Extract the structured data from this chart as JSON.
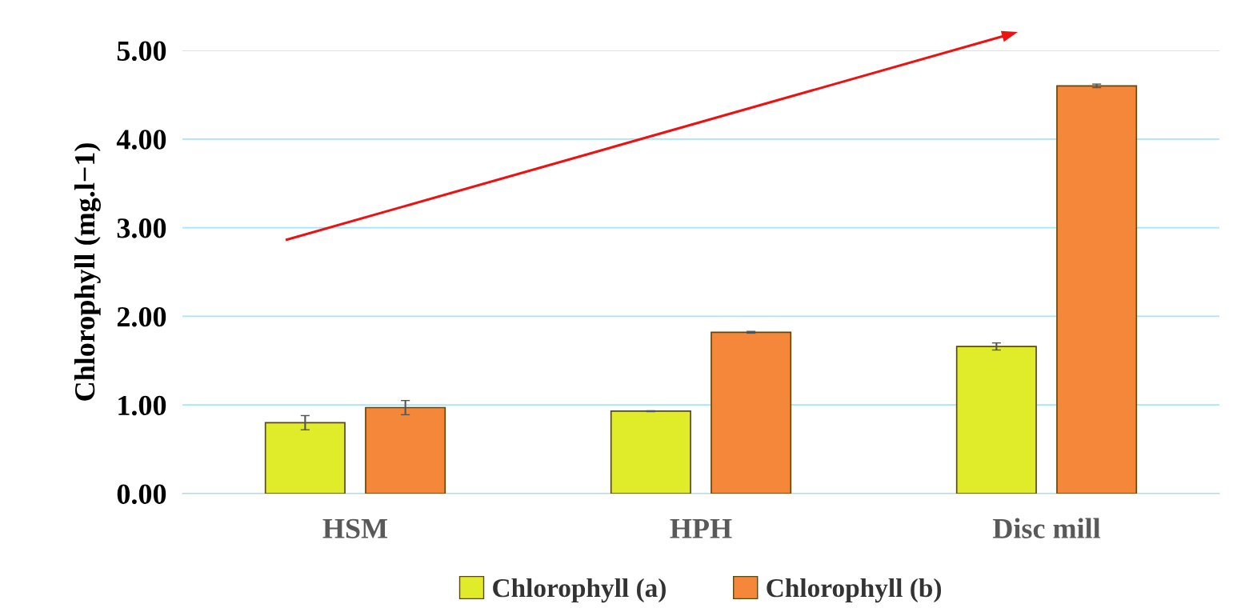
{
  "chart_data": {
    "type": "bar",
    "ylabel": "Chlorophyll (mg.l−1)",
    "categories": [
      "HSM",
      "HPH",
      "Disc mill"
    ],
    "series": [
      {
        "name": "Chlorophyll (a)",
        "color": "#e0ec2a",
        "values": [
          0.8,
          0.93,
          1.66
        ],
        "errors": [
          0.08,
          0.005,
          0.04
        ]
      },
      {
        "name": "Chlorophyll (b)",
        "color": "#f5873a",
        "values": [
          0.97,
          1.82,
          4.6
        ],
        "errors": [
          0.08,
          0.01,
          0.02
        ]
      }
    ],
    "ylim": [
      0,
      5
    ],
    "yticks": [
      {
        "value": 0,
        "label": "0.00"
      },
      {
        "value": 1,
        "label": "1.00"
      },
      {
        "value": 2,
        "label": "2.00"
      },
      {
        "value": 3,
        "label": "3.00"
      },
      {
        "value": 4,
        "label": "4.00"
      },
      {
        "value": 5,
        "label": "5.00"
      }
    ],
    "grid": "y",
    "legend": "bottom"
  }
}
